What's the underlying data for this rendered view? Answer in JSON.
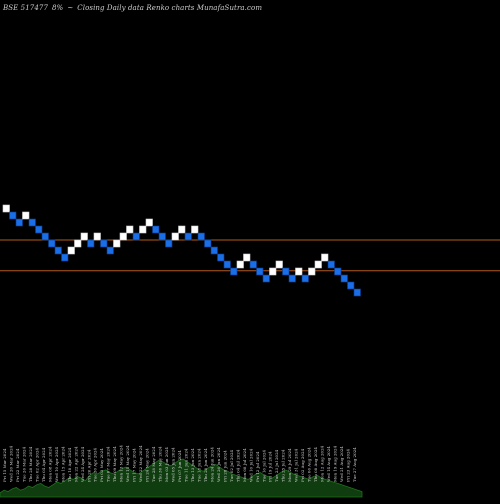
{
  "header": {
    "symbol": "BSE 517477",
    "change": "8%",
    "arrow": "~",
    "description": "Closing Daily data  Renko  charts MunafaSutra.com"
  },
  "colors": {
    "background": "#000000",
    "up_brick": "#ffffff",
    "down_brick": "#1a6fe8",
    "brick_border": "#0a3b8a",
    "reference_line": "#b35a1a",
    "volume_area": "#0f3d0f",
    "volume_edge": "#1f6e1f",
    "date_label": "#d9d9d9"
  },
  "chart_data": {
    "type": "renko",
    "bricks": [
      {
        "level": 0,
        "dir": "up"
      },
      {
        "level": -1,
        "dir": "down"
      },
      {
        "level": -2,
        "dir": "down"
      },
      {
        "level": -1,
        "dir": "up"
      },
      {
        "level": -2,
        "dir": "down"
      },
      {
        "level": -3,
        "dir": "down"
      },
      {
        "level": -4,
        "dir": "down"
      },
      {
        "level": -5,
        "dir": "down"
      },
      {
        "level": -6,
        "dir": "down"
      },
      {
        "level": -7,
        "dir": "down"
      },
      {
        "level": -6,
        "dir": "up"
      },
      {
        "level": -5,
        "dir": "up"
      },
      {
        "level": -4,
        "dir": "up"
      },
      {
        "level": -5,
        "dir": "down"
      },
      {
        "level": -4,
        "dir": "up"
      },
      {
        "level": -5,
        "dir": "down"
      },
      {
        "level": -6,
        "dir": "down"
      },
      {
        "level": -5,
        "dir": "up"
      },
      {
        "level": -4,
        "dir": "up"
      },
      {
        "level": -3,
        "dir": "up"
      },
      {
        "level": -4,
        "dir": "down"
      },
      {
        "level": -3,
        "dir": "up"
      },
      {
        "level": -2,
        "dir": "up"
      },
      {
        "level": -3,
        "dir": "down"
      },
      {
        "level": -4,
        "dir": "down"
      },
      {
        "level": -5,
        "dir": "down"
      },
      {
        "level": -4,
        "dir": "up"
      },
      {
        "level": -3,
        "dir": "up"
      },
      {
        "level": -4,
        "dir": "down"
      },
      {
        "level": -3,
        "dir": "up"
      },
      {
        "level": -4,
        "dir": "down"
      },
      {
        "level": -5,
        "dir": "down"
      },
      {
        "level": -6,
        "dir": "down"
      },
      {
        "level": -7,
        "dir": "down"
      },
      {
        "level": -8,
        "dir": "down"
      },
      {
        "level": -9,
        "dir": "down"
      },
      {
        "level": -8,
        "dir": "up"
      },
      {
        "level": -7,
        "dir": "up"
      },
      {
        "level": -8,
        "dir": "down"
      },
      {
        "level": -9,
        "dir": "down"
      },
      {
        "level": -10,
        "dir": "down"
      },
      {
        "level": -9,
        "dir": "up"
      },
      {
        "level": -8,
        "dir": "up"
      },
      {
        "level": -9,
        "dir": "down"
      },
      {
        "level": -10,
        "dir": "down"
      },
      {
        "level": -9,
        "dir": "up"
      },
      {
        "level": -10,
        "dir": "down"
      },
      {
        "level": -9,
        "dir": "up"
      },
      {
        "level": -8,
        "dir": "up"
      },
      {
        "level": -7,
        "dir": "up"
      },
      {
        "level": -8,
        "dir": "down"
      },
      {
        "level": -9,
        "dir": "down"
      },
      {
        "level": -10,
        "dir": "down"
      },
      {
        "level": -11,
        "dir": "down"
      },
      {
        "level": -12,
        "dir": "down"
      }
    ],
    "reference_lines": [
      {
        "level": -4.5
      },
      {
        "level": -8.9
      }
    ],
    "volume": [
      3,
      5,
      4,
      6,
      7,
      5,
      6,
      8,
      7,
      9,
      10,
      8,
      7,
      9,
      11,
      10,
      12,
      14,
      13,
      15,
      14,
      12,
      16,
      18,
      17,
      19,
      20,
      18,
      17,
      19,
      21,
      22,
      20,
      18,
      17,
      19,
      21,
      23,
      25,
      27,
      26,
      24,
      23,
      25,
      27,
      28,
      26,
      24,
      22,
      20,
      19,
      21,
      23,
      24,
      22,
      20,
      19,
      17,
      16,
      15,
      14,
      13,
      15,
      17,
      18,
      16,
      15,
      14,
      16,
      18,
      20,
      19,
      17,
      16,
      15,
      14,
      13,
      15,
      16,
      14,
      13,
      12,
      11,
      10,
      9,
      8,
      7,
      6,
      5,
      4
    ],
    "date_labels": [
      "Fri 15 Mar 2024",
      "Wed 20 Mar 2024",
      "Fri 22 Mar 2024",
      "Tue 26 Mar 2024",
      "Thu 28 Mar 2024",
      "Tue 02 Apr 2024",
      "Thu 04 Apr 2024",
      "Mon 08 Apr 2024",
      "Wed 10 Apr 2024",
      "Mon 15 Apr 2024",
      "Thu 18 Apr 2024",
      "Mon 22 Apr 2024",
      "Wed 24 Apr 2024",
      "Fri 26 Apr 2024",
      "Tue 30 Apr 2024",
      "Fri 03 May 2024",
      "Tue 07 May 2024",
      "Thu 09 May 2024",
      "Mon 13 May 2024",
      "Wed 15 May 2024",
      "Fri 17 May 2024",
      "Wed 22 May 2024",
      "Fri 24 May 2024",
      "Tue 28 May 2024",
      "Thu 30 May 2024",
      "Mon 03 Jun 2024",
      "Wed 05 Jun 2024",
      "Fri 07 Jun 2024",
      "Tue 11 Jun 2024",
      "Thu 13 Jun 2024",
      "Tue 18 Jun 2024",
      "Thu 20 Jun 2024",
      "Mon 24 Jun 2024",
      "Wed 26 Jun 2024",
      "Fri 28 Jun 2024",
      "Tue 02 Jul 2024",
      "Thu 04 Jul 2024",
      "Mon 08 Jul 2024",
      "Wed 10 Jul 2024",
      "Fri 12 Jul 2024",
      "Tue 16 Jul 2024",
      "Fri 19 Jul 2024",
      "Tue 23 Jul 2024",
      "Thu 25 Jul 2024",
      "Mon 29 Jul 2024",
      "Wed 31 Jul 2024",
      "Fri 02 Aug 2024",
      "Tue 06 Aug 2024",
      "Thu 08 Aug 2024",
      "Mon 12 Aug 2024",
      "Wed 14 Aug 2024",
      "Mon 19 Aug 2024",
      "Wed 21 Aug 2024",
      "Fri 23 Aug 2024",
      "Tue 27 Aug 2024"
    ]
  }
}
